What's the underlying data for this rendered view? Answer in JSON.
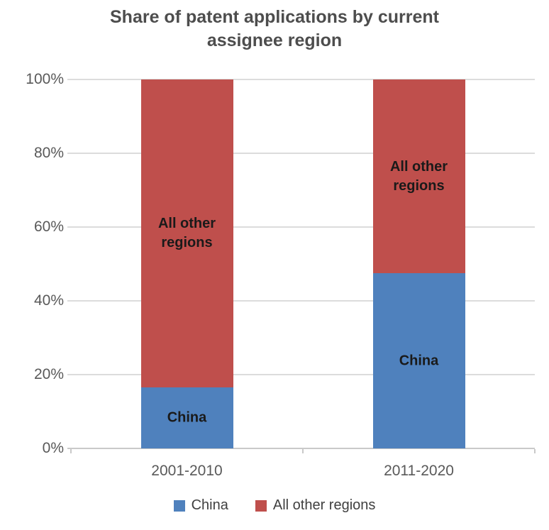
{
  "chart_data": {
    "type": "bar",
    "stacked": true,
    "percent_stacked": true,
    "title": "Share of patent applications by current assignee region",
    "categories": [
      "2001-2010",
      "2011-2020"
    ],
    "series": [
      {
        "name": "China",
        "color": "#4F81BD",
        "values": [
          16.5,
          47.5
        ]
      },
      {
        "name": "All other regions",
        "color": "#BF4F4C",
        "values": [
          83.5,
          52.5
        ]
      }
    ],
    "ylim": [
      0,
      100
    ],
    "yticks": {
      "values": [
        0,
        20,
        40,
        60,
        80,
        100
      ],
      "labels": [
        "0%",
        "20%",
        "40%",
        "60%",
        "80%",
        "100%"
      ]
    },
    "grid": true,
    "legend_position": "bottom",
    "legend": [
      "China",
      "All other regions"
    ],
    "bar_inner_labels": [
      {
        "category": "2001-2010",
        "segment": "China",
        "text": "China"
      },
      {
        "category": "2001-2010",
        "segment": "All other regions",
        "text": "All other regions"
      },
      {
        "category": "2011-2020",
        "segment": "China",
        "text": "China"
      },
      {
        "category": "2011-2020",
        "segment": "All other regions",
        "text": "All other regions"
      }
    ]
  },
  "colors": {
    "china": "#4F81BD",
    "all_other_regions": "#BF4F4C",
    "title_text": "#4d4d4d",
    "axis_text": "#595959",
    "gridline": "#dcdcdc",
    "axis_line": "#c9c9c9",
    "inner_label_text": "#1a1a1a",
    "legend_text": "#404040"
  }
}
